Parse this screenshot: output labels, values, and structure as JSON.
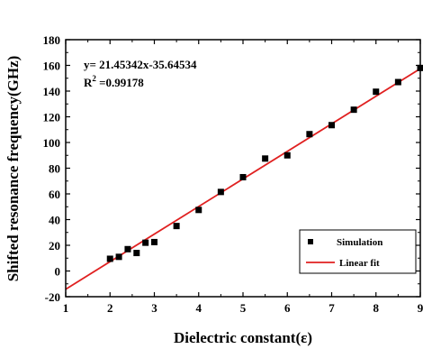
{
  "chart_data": {
    "type": "scatter",
    "xlabel": "Dielectric constant(ε)",
    "ylabel": "Shifted resonance frequency(GHz)",
    "xlim": [
      1,
      9
    ],
    "ylim": [
      -20,
      180
    ],
    "xticks": [
      1,
      2,
      3,
      4,
      5,
      6,
      7,
      8,
      9
    ],
    "yticks": [
      -20,
      0,
      20,
      40,
      60,
      80,
      100,
      120,
      140,
      160,
      180
    ],
    "series": [
      {
        "name": "Simulation",
        "marker": "square",
        "color": "#000000",
        "points": [
          [
            2.0,
            9.5
          ],
          [
            2.2,
            11
          ],
          [
            2.4,
            17
          ],
          [
            2.6,
            14
          ],
          [
            2.8,
            22
          ],
          [
            3.0,
            22.5
          ],
          [
            3.5,
            35
          ],
          [
            4.0,
            47.5
          ],
          [
            4.5,
            61.5
          ],
          [
            5.0,
            73
          ],
          [
            5.5,
            87.5
          ],
          [
            6.0,
            90
          ],
          [
            6.5,
            106.5
          ],
          [
            7.0,
            113.5
          ],
          [
            7.5,
            125.5
          ],
          [
            8.0,
            139.5
          ],
          [
            8.5,
            147
          ],
          [
            9.0,
            158
          ]
        ]
      },
      {
        "name": "Linear fit",
        "type": "line",
        "color": "#e02020",
        "slope": 21.45342,
        "intercept": -35.64534
      }
    ],
    "annotations": {
      "equation": "y= 21.45342x-35.64534",
      "r2_prefix": "R",
      "r2_sup": "2",
      "r2_value": " =0.99178"
    },
    "legend": {
      "position": "bottom-right",
      "items": [
        "Simulation",
        "Linear fit"
      ]
    }
  }
}
